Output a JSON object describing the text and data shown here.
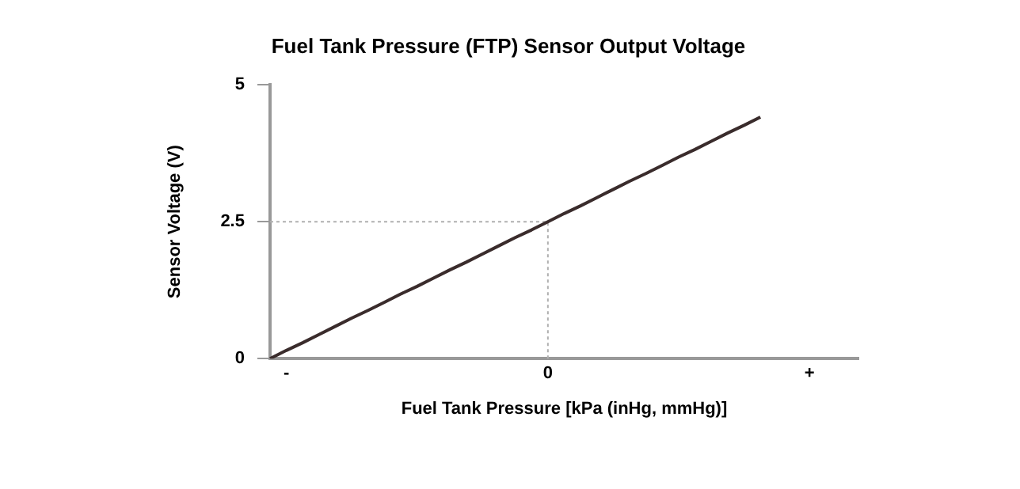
{
  "chart_data": {
    "type": "line",
    "title": "Fuel Tank Pressure (FTP) Sensor Output Voltage",
    "xlabel": "Fuel Tank Pressure [kPa (inHg, mmHg)]",
    "ylabel": "Sensor Voltage (V)",
    "categories": [
      null,
      "-",
      null,
      null,
      null,
      null,
      null,
      null,
      null,
      null,
      null,
      null,
      null,
      null,
      null,
      null,
      null,
      "0",
      null,
      null,
      null,
      null,
      null,
      null,
      null,
      null,
      null,
      null,
      null,
      null,
      null,
      null,
      null,
      "+",
      null,
      null,
      null
    ],
    "series": [
      {
        "color": "#3a2c2c",
        "values": [
          0,
          0.15,
          0.29,
          0.44,
          0.59,
          0.74,
          0.88,
          1.03,
          1.18,
          1.32,
          1.47,
          1.62,
          1.76,
          1.91,
          2.06,
          2.21,
          2.35,
          2.5,
          2.65,
          2.79,
          2.94,
          3.09,
          3.24,
          3.38,
          3.53,
          3.68,
          3.82,
          3.97,
          4.12,
          4.26,
          4.41,
          null,
          null,
          null,
          null,
          null,
          null
        ]
      }
    ],
    "ylim": [
      0,
      5
    ],
    "yticks": [
      0,
      2.5,
      5
    ],
    "ref_lines": [
      {
        "axis": "x",
        "value": "0",
        "color": "#b0b0b0",
        "line_style": "dotted"
      },
      {
        "axis": "y",
        "value": 2.5,
        "color": "#b0b0b0",
        "line_style": "dotted"
      }
    ],
    "grid": false,
    "legend": false,
    "marker": "none",
    "line_style": "solid"
  }
}
